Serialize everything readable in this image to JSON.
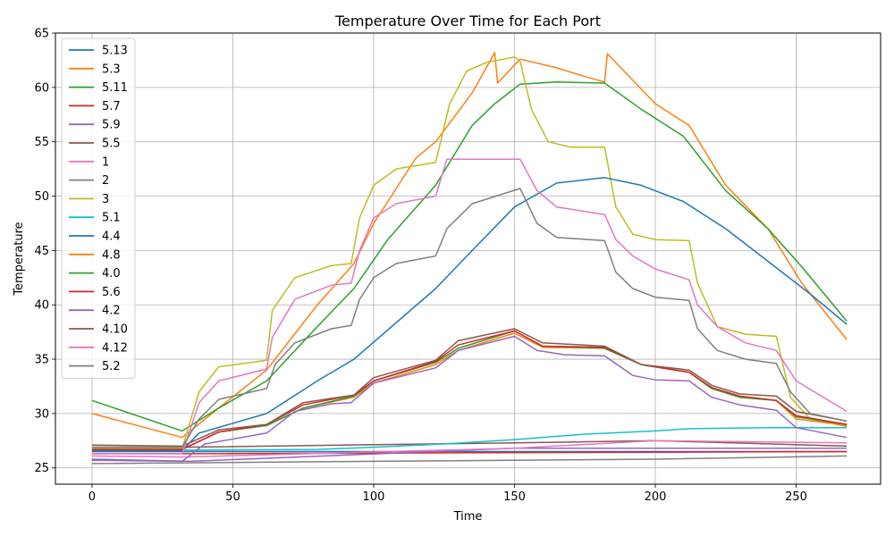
{
  "chart_data": {
    "type": "line",
    "title": "Temperature Over Time for Each Port",
    "xlabel": "Time",
    "ylabel": "Temperature",
    "xlim": [
      -13,
      280
    ],
    "ylim": [
      23.5,
      65
    ],
    "xticks": [
      0,
      50,
      100,
      150,
      200,
      250
    ],
    "yticks": [
      25,
      30,
      35,
      40,
      45,
      50,
      55,
      60,
      65
    ],
    "grid": true,
    "legend_position": "top-left",
    "series": [
      {
        "name": "5.13",
        "color": "#1f77b4",
        "points": [
          [
            0,
            26.5
          ],
          [
            32,
            26.5
          ],
          [
            268,
            26.5
          ]
        ]
      },
      {
        "name": "5.3",
        "color": "#ff7f0e",
        "points": [
          [
            0,
            30
          ],
          [
            32,
            27.8
          ],
          [
            45,
            30.5
          ],
          [
            62,
            34
          ],
          [
            80,
            40
          ],
          [
            93,
            43.8
          ],
          [
            100,
            47.5
          ],
          [
            115,
            53.5
          ],
          [
            122,
            55
          ],
          [
            135,
            59.5
          ],
          [
            143,
            63.2
          ],
          [
            144,
            60.4
          ],
          [
            152,
            62.6
          ],
          [
            165,
            61.8
          ],
          [
            175,
            61
          ],
          [
            182,
            60.5
          ],
          [
            183,
            63.1
          ],
          [
            200,
            58.5
          ],
          [
            212,
            56.5
          ],
          [
            225,
            51
          ],
          [
            240,
            47
          ],
          [
            252,
            42
          ],
          [
            268,
            36.8
          ]
        ]
      },
      {
        "name": "5.11",
        "color": "#2ca02c",
        "points": [
          [
            0,
            31.2
          ],
          [
            32,
            28.4
          ],
          [
            45,
            30.5
          ],
          [
            62,
            33
          ],
          [
            80,
            38
          ],
          [
            93,
            41.5
          ],
          [
            105,
            46
          ],
          [
            122,
            51
          ],
          [
            135,
            56.5
          ],
          [
            143,
            58.5
          ],
          [
            152,
            60.3
          ],
          [
            165,
            60.5
          ],
          [
            182,
            60.4
          ],
          [
            195,
            58
          ],
          [
            210,
            55.5
          ],
          [
            225,
            50.5
          ],
          [
            240,
            47
          ],
          [
            252,
            43.5
          ],
          [
            268,
            38.5
          ]
        ]
      },
      {
        "name": "5.7",
        "color": "#d62728",
        "points": [
          [
            0,
            26.3
          ],
          [
            35,
            26.3
          ],
          [
            268,
            26.5
          ]
        ]
      },
      {
        "name": "5.9",
        "color": "#9467bd",
        "points": [
          [
            0,
            25.8
          ],
          [
            35,
            25.6
          ],
          [
            150,
            26.8
          ],
          [
            268,
            26.8
          ]
        ]
      },
      {
        "name": "5.5",
        "color": "#8c564b",
        "points": [
          [
            0,
            26.9
          ],
          [
            32,
            26.9
          ],
          [
            150,
            27.3
          ],
          [
            200,
            27.5
          ],
          [
            268,
            27.0
          ]
        ]
      },
      {
        "name": "1",
        "color": "#e377c2",
        "points": [
          [
            0,
            26.1
          ],
          [
            32,
            26.0
          ],
          [
            150,
            26.8
          ],
          [
            200,
            27.5
          ],
          [
            268,
            27.3
          ]
        ]
      },
      {
        "name": "2",
        "color": "#7f7f7f",
        "points": [
          [
            0,
            25.4
          ],
          [
            100,
            25.6
          ],
          [
            200,
            25.8
          ],
          [
            268,
            26.1
          ]
        ]
      },
      {
        "name": "3",
        "color": "#bcbd22",
        "points": [
          [
            0,
            26.8
          ],
          [
            32,
            26.8
          ],
          [
            38,
            32
          ],
          [
            45,
            34.3
          ],
          [
            62,
            34.9
          ],
          [
            64,
            39.5
          ],
          [
            72,
            42.5
          ],
          [
            85,
            43.6
          ],
          [
            92,
            43.8
          ],
          [
            95,
            48
          ],
          [
            100,
            51
          ],
          [
            108,
            52.5
          ],
          [
            122,
            53.1
          ],
          [
            127,
            58.5
          ],
          [
            133,
            61.5
          ],
          [
            140,
            62.3
          ],
          [
            150,
            62.8
          ],
          [
            152,
            62.4
          ],
          [
            156,
            58
          ],
          [
            162,
            55
          ],
          [
            170,
            54.5
          ],
          [
            182,
            54.5
          ],
          [
            186,
            49
          ],
          [
            192,
            46.5
          ],
          [
            200,
            46
          ],
          [
            212,
            45.9
          ],
          [
            215,
            42
          ],
          [
            222,
            38
          ],
          [
            232,
            37.3
          ],
          [
            243,
            37.1
          ],
          [
            248,
            31.5
          ],
          [
            255,
            29.5
          ],
          [
            268,
            28.8
          ]
        ]
      },
      {
        "name": "5.1",
        "color": "#17becf",
        "points": [
          [
            0,
            26.6
          ],
          [
            80,
            26.7
          ],
          [
            100,
            26.9
          ],
          [
            125,
            27.2
          ],
          [
            150,
            27.6
          ],
          [
            175,
            28.1
          ],
          [
            200,
            28.4
          ],
          [
            212,
            28.6
          ],
          [
            240,
            28.7
          ],
          [
            268,
            28.7
          ]
        ]
      },
      {
        "name": "4.4",
        "color": "#1f77b4",
        "points": [
          [
            0,
            26.6
          ],
          [
            32,
            26.6
          ],
          [
            38,
            28.2
          ],
          [
            62,
            30
          ],
          [
            80,
            33
          ],
          [
            93,
            35
          ],
          [
            122,
            41.5
          ],
          [
            135,
            45
          ],
          [
            150,
            49
          ],
          [
            165,
            51.2
          ],
          [
            182,
            51.7
          ],
          [
            195,
            51
          ],
          [
            210,
            49.5
          ],
          [
            225,
            47
          ],
          [
            240,
            44
          ],
          [
            255,
            41
          ],
          [
            268,
            38.2
          ]
        ]
      },
      {
        "name": "4.8",
        "color": "#ff7f0e",
        "points": [
          [
            0,
            26.7
          ],
          [
            32,
            26.7
          ],
          [
            45,
            28.3
          ],
          [
            62,
            28.9
          ],
          [
            75,
            30.5
          ],
          [
            93,
            31.5
          ],
          [
            100,
            32.8
          ],
          [
            122,
            34.5
          ],
          [
            130,
            35.8
          ],
          [
            150,
            37.4
          ],
          [
            160,
            36.1
          ],
          [
            182,
            36
          ],
          [
            195,
            34.5
          ],
          [
            212,
            33.8
          ],
          [
            220,
            32.3
          ],
          [
            230,
            31.5
          ],
          [
            243,
            31.2
          ],
          [
            250,
            29.5
          ],
          [
            268,
            28.9
          ]
        ]
      },
      {
        "name": "4.0",
        "color": "#2ca02c",
        "points": [
          [
            0,
            26.7
          ],
          [
            32,
            26.7
          ],
          [
            45,
            28.3
          ],
          [
            62,
            28.9
          ],
          [
            75,
            30.5
          ],
          [
            93,
            31.6
          ],
          [
            100,
            33
          ],
          [
            122,
            34.7
          ],
          [
            130,
            36
          ],
          [
            150,
            37.6
          ],
          [
            160,
            36.2
          ],
          [
            182,
            36
          ],
          [
            195,
            34.5
          ],
          [
            212,
            33.8
          ],
          [
            220,
            32.3
          ],
          [
            230,
            31.5
          ],
          [
            243,
            31.2
          ],
          [
            250,
            29.7
          ],
          [
            268,
            29
          ]
        ]
      },
      {
        "name": "5.6",
        "color": "#d62728",
        "points": [
          [
            0,
            26.7
          ],
          [
            32,
            26.7
          ],
          [
            45,
            28.3
          ],
          [
            62,
            29
          ],
          [
            75,
            30.8
          ],
          [
            93,
            31.7
          ],
          [
            100,
            33
          ],
          [
            122,
            34.8
          ],
          [
            130,
            36.3
          ],
          [
            150,
            37.6
          ],
          [
            160,
            36.2
          ],
          [
            182,
            36.1
          ],
          [
            195,
            34.5
          ],
          [
            212,
            33.8
          ],
          [
            220,
            32.4
          ],
          [
            230,
            31.6
          ],
          [
            243,
            31.2
          ],
          [
            250,
            29.8
          ],
          [
            268,
            29
          ]
        ]
      },
      {
        "name": "4.2",
        "color": "#9467bd",
        "points": [
          [
            0,
            25.7
          ],
          [
            32,
            25.6
          ],
          [
            40,
            27.2
          ],
          [
            62,
            28.2
          ],
          [
            72,
            30.2
          ],
          [
            85,
            30.9
          ],
          [
            92,
            31
          ],
          [
            100,
            32.8
          ],
          [
            122,
            34.2
          ],
          [
            130,
            35.8
          ],
          [
            150,
            37.1
          ],
          [
            158,
            35.8
          ],
          [
            168,
            35.4
          ],
          [
            182,
            35.3
          ],
          [
            192,
            33.5
          ],
          [
            200,
            33.1
          ],
          [
            212,
            33
          ],
          [
            220,
            31.5
          ],
          [
            230,
            30.8
          ],
          [
            243,
            30.3
          ],
          [
            250,
            28.7
          ],
          [
            268,
            27.8
          ]
        ]
      },
      {
        "name": "4.10",
        "color": "#8c564b",
        "points": [
          [
            0,
            27.1
          ],
          [
            32,
            27
          ],
          [
            45,
            28.5
          ],
          [
            62,
            29
          ],
          [
            75,
            31
          ],
          [
            93,
            31.7
          ],
          [
            100,
            33.3
          ],
          [
            122,
            34.9
          ],
          [
            130,
            36.7
          ],
          [
            150,
            37.8
          ],
          [
            160,
            36.5
          ],
          [
            182,
            36.2
          ],
          [
            195,
            34.5
          ],
          [
            212,
            34
          ],
          [
            220,
            32.6
          ],
          [
            230,
            31.8
          ],
          [
            243,
            31.6
          ],
          [
            250,
            30.2
          ],
          [
            268,
            29.3
          ]
        ]
      },
      {
        "name": "4.12",
        "color": "#e377c2",
        "points": [
          [
            0,
            26.3
          ],
          [
            32,
            26.3
          ],
          [
            38,
            31
          ],
          [
            45,
            33
          ],
          [
            62,
            34.1
          ],
          [
            64,
            37
          ],
          [
            72,
            40.5
          ],
          [
            85,
            41.8
          ],
          [
            92,
            42
          ],
          [
            95,
            45
          ],
          [
            100,
            48
          ],
          [
            108,
            49.3
          ],
          [
            122,
            50
          ],
          [
            126,
            53.4
          ],
          [
            135,
            53.4
          ],
          [
            152,
            53.4
          ],
          [
            158,
            50.5
          ],
          [
            165,
            49
          ],
          [
            182,
            48.3
          ],
          [
            186,
            46
          ],
          [
            192,
            44.5
          ],
          [
            200,
            43.3
          ],
          [
            212,
            42.3
          ],
          [
            215,
            40
          ],
          [
            222,
            38
          ],
          [
            232,
            36.5
          ],
          [
            243,
            35.8
          ],
          [
            250,
            33
          ],
          [
            268,
            30.2
          ]
        ]
      },
      {
        "name": "5.2",
        "color": "#7f7f7f",
        "points": [
          [
            0,
            26.9
          ],
          [
            32,
            26.9
          ],
          [
            38,
            29.5
          ],
          [
            45,
            31.3
          ],
          [
            62,
            32.3
          ],
          [
            65,
            34.5
          ],
          [
            72,
            36.5
          ],
          [
            85,
            37.8
          ],
          [
            92,
            38.1
          ],
          [
            95,
            40.5
          ],
          [
            100,
            42.5
          ],
          [
            108,
            43.8
          ],
          [
            122,
            44.5
          ],
          [
            126,
            47
          ],
          [
            135,
            49.3
          ],
          [
            152,
            50.7
          ],
          [
            158,
            47.5
          ],
          [
            165,
            46.2
          ],
          [
            182,
            45.9
          ],
          [
            186,
            43
          ],
          [
            192,
            41.5
          ],
          [
            200,
            40.7
          ],
          [
            212,
            40.4
          ],
          [
            215,
            37.8
          ],
          [
            222,
            35.8
          ],
          [
            232,
            35
          ],
          [
            243,
            34.6
          ],
          [
            248,
            32
          ],
          [
            255,
            30
          ],
          [
            268,
            29.3
          ]
        ]
      }
    ]
  }
}
